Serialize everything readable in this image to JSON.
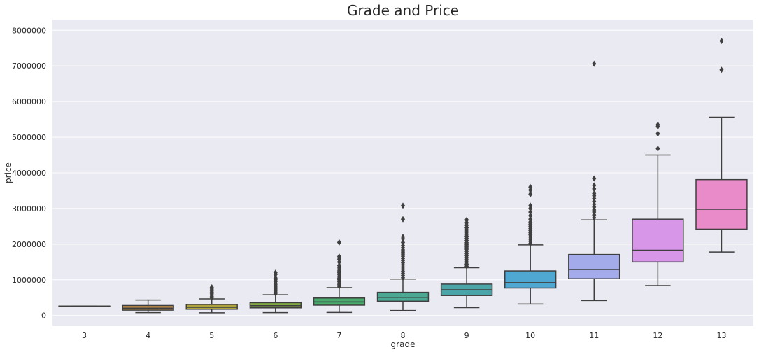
{
  "chart_data": {
    "type": "box",
    "title": "Grade and Price",
    "xlabel": "grade",
    "ylabel": "price",
    "ylim": [
      -300000,
      8300000
    ],
    "grid": true,
    "y_ticks": [
      0,
      1000000,
      2000000,
      3000000,
      4000000,
      5000000,
      6000000,
      7000000,
      8000000
    ],
    "y_tick_labels": [
      "0",
      "1000000",
      "2000000",
      "3000000",
      "4000000",
      "5000000",
      "6000000",
      "7000000",
      "8000000"
    ],
    "categories": [
      "3",
      "4",
      "5",
      "6",
      "7",
      "8",
      "9",
      "10",
      "11",
      "12",
      "13"
    ],
    "series": [
      {
        "color": "#d98a82",
        "q1": 262000,
        "median": 262000,
        "q3": 262000,
        "whisker_low": 262000,
        "whisker_high": 262000,
        "outliers": []
      },
      {
        "color": "#c8924a",
        "q1": 150000,
        "median": 205000,
        "q3": 280000,
        "whisker_low": 80000,
        "whisker_high": 435000,
        "outliers": []
      },
      {
        "color": "#aea33f",
        "q1": 175000,
        "median": 230000,
        "q3": 310000,
        "whisker_low": 75000,
        "whisker_high": 465000,
        "outliers": [
          500000,
          540000,
          580000,
          620000,
          660000,
          700000,
          740000,
          790000
        ]
      },
      {
        "color": "#82a844",
        "q1": 215000,
        "median": 275000,
        "q3": 360000,
        "whisker_low": 80000,
        "whisker_high": 580000,
        "outliers": [
          620000,
          660000,
          700000,
          740000,
          780000,
          820000,
          860000,
          900000,
          950000,
          1000000,
          1050000,
          1150000,
          1200000
        ]
      },
      {
        "color": "#49ab6c",
        "q1": 290000,
        "median": 380000,
        "q3": 490000,
        "whisker_low": 85000,
        "whisker_high": 780000,
        "outliers": [
          820000,
          860000,
          900000,
          950000,
          1000000,
          1050000,
          1100000,
          1150000,
          1200000,
          1250000,
          1300000,
          1350000,
          1400000,
          1500000,
          1580000,
          1650000,
          2050000
        ]
      },
      {
        "color": "#4aa893",
        "q1": 400000,
        "median": 510000,
        "q3": 650000,
        "whisker_low": 140000,
        "whisker_high": 1020000,
        "outliers": [
          1060000,
          1120000,
          1180000,
          1240000,
          1300000,
          1360000,
          1420000,
          1480000,
          1540000,
          1600000,
          1660000,
          1720000,
          1780000,
          1840000,
          1900000,
          1960000,
          2050000,
          2150000,
          2200000,
          2700000,
          3080000
        ]
      },
      {
        "color": "#4ba5a8",
        "q1": 560000,
        "median": 720000,
        "q3": 880000,
        "whisker_low": 220000,
        "whisker_high": 1340000,
        "outliers": [
          1380000,
          1440000,
          1500000,
          1560000,
          1620000,
          1680000,
          1740000,
          1800000,
          1860000,
          1920000,
          1980000,
          2040000,
          2100000,
          2160000,
          2220000,
          2280000,
          2340000,
          2400000,
          2460000,
          2530000,
          2600000,
          2680000
        ]
      },
      {
        "color": "#4fa8d1",
        "q1": 770000,
        "median": 920000,
        "q3": 1250000,
        "whisker_low": 320000,
        "whisker_high": 1980000,
        "outliers": [
          2020000,
          2080000,
          2140000,
          2200000,
          2260000,
          2320000,
          2380000,
          2440000,
          2500000,
          2560000,
          2620000,
          2700000,
          2800000,
          2900000,
          3000000,
          3080000,
          3400000,
          3520000,
          3600000
        ]
      },
      {
        "color": "#a3abea",
        "q1": 1030000,
        "median": 1290000,
        "q3": 1710000,
        "whisker_low": 420000,
        "whisker_high": 2680000,
        "outliers": [
          2740000,
          2820000,
          2900000,
          2960000,
          3040000,
          3120000,
          3200000,
          3280000,
          3360000,
          3420000,
          3550000,
          3650000,
          3840000,
          7060000
        ]
      },
      {
        "color": "#d896e8",
        "q1": 1500000,
        "median": 1830000,
        "q3": 2700000,
        "whisker_low": 840000,
        "whisker_high": 4500000,
        "outliers": [
          4680000,
          5100000,
          5300000,
          5350000
        ]
      },
      {
        "color": "#e98ac9",
        "q1": 2420000,
        "median": 2980000,
        "q3": 3810000,
        "whisker_low": 1780000,
        "whisker_high": 5560000,
        "outliers": [
          6890000,
          7700000
        ]
      }
    ]
  }
}
